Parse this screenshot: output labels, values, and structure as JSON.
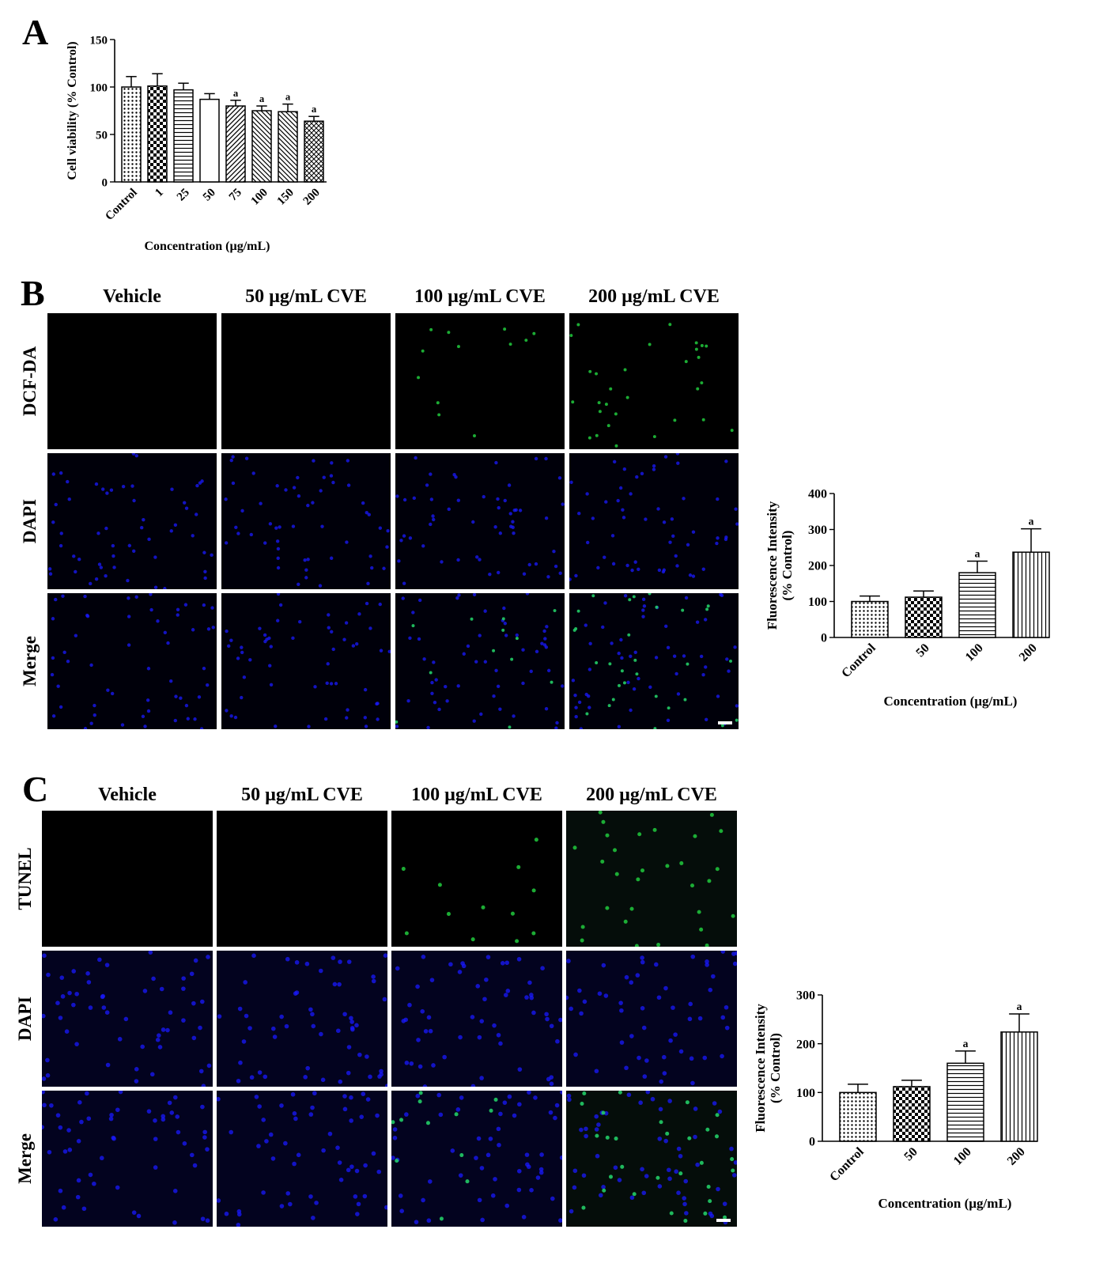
{
  "panels": {
    "A": {
      "letter": "A"
    },
    "B": {
      "letter": "B",
      "columns": [
        "Vehicle",
        "50 µg/mL CVE",
        "100 µg/mL CVE",
        "200 µg/mL CVE"
      ],
      "rows": [
        "DCF-DA",
        "DAPI",
        "Merge"
      ]
    },
    "C": {
      "letter": "C",
      "columns": [
        "Vehicle",
        "50 µg/mL CVE",
        "100 µg/mL CVE",
        "200 µg/mL CVE"
      ],
      "rows": [
        "TUNEL",
        "DAPI",
        "Merge"
      ]
    }
  },
  "chart_data": [
    {
      "id": "A",
      "type": "bar",
      "categories": [
        "Control",
        "1",
        "25",
        "50",
        "75",
        "100",
        "150",
        "200"
      ],
      "values": [
        100,
        101,
        97,
        87,
        80,
        75,
        74,
        64
      ],
      "errors": [
        11,
        13,
        7,
        6,
        6,
        5,
        8,
        5
      ],
      "annotations": [
        "",
        "",
        "",
        "",
        "a",
        "a",
        "a",
        "a"
      ],
      "xlabel": "Concentration (µg/mL)",
      "ylabel": "Cell viability (% Control)",
      "ylim": [
        0,
        150
      ],
      "yticks": [
        0,
        50,
        100,
        150
      ]
    },
    {
      "id": "B",
      "type": "bar",
      "categories": [
        "Control",
        "50",
        "100",
        "200"
      ],
      "values": [
        100,
        112,
        180,
        237
      ],
      "errors": [
        15,
        17,
        32,
        65
      ],
      "annotations": [
        "",
        "",
        "a",
        "a"
      ],
      "xlabel": "Concentration (µg/mL)",
      "ylabel": [
        "Fluorescence Intensity",
        "(% Control)"
      ],
      "ylim": [
        0,
        400
      ],
      "yticks": [
        0,
        100,
        200,
        300,
        400
      ]
    },
    {
      "id": "C",
      "type": "bar",
      "categories": [
        "Control",
        "50",
        "100",
        "200"
      ],
      "values": [
        100,
        112,
        160,
        224
      ],
      "errors": [
        17,
        13,
        25,
        37
      ],
      "annotations": [
        "",
        "",
        "a",
        "a"
      ],
      "xlabel": "Concentration (µg/mL)",
      "ylabel": [
        "Fluorescence Intensity",
        "(% Control)"
      ],
      "ylim": [
        0,
        300
      ],
      "yticks": [
        0,
        100,
        200,
        300
      ]
    }
  ]
}
